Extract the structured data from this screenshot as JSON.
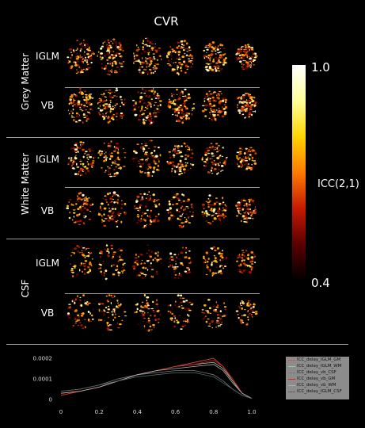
{
  "title": "CVR",
  "groups": [
    {
      "label": "Grey Matter",
      "rows": [
        "IGLM",
        "VB"
      ]
    },
    {
      "label": "White Matter",
      "rows": [
        "IGLM",
        "VB"
      ]
    },
    {
      "label": "CSF",
      "rows": [
        "IGLM",
        "VB"
      ]
    }
  ],
  "colorbar": {
    "max_label": "1.0",
    "min_label": "0.4",
    "label": "ICC(2,1)",
    "colors": [
      "#000000",
      "#5a0000",
      "#c41a00",
      "#ff7a00",
      "#ffd400",
      "#ffff9a",
      "#ffffff"
    ]
  },
  "chart_data": {
    "type": "line",
    "xlim": [
      0,
      1.0
    ],
    "ylim": [
      0,
      0.0002
    ],
    "x_ticks": [
      "0",
      "0.2",
      "0.4",
      "0.6",
      "0.8",
      "1.0"
    ],
    "y_ticks": [
      "0.0002",
      "0.0001",
      "0"
    ],
    "legend_position": "right",
    "x": [
      0,
      0.1,
      0.2,
      0.3,
      0.4,
      0.5,
      0.6,
      0.7,
      0.8,
      0.85,
      0.9,
      0.95,
      1.0
    ],
    "series": [
      {
        "name": "ICC_delay_IGLM_GM",
        "color": "#d9534f",
        "values": [
          2e-05,
          4e-05,
          6e-05,
          9e-05,
          0.00012,
          0.00014,
          0.00016,
          0.00018,
          0.0002,
          0.00016,
          9e-05,
          3e-05,
          5e-06
        ]
      },
      {
        "name": "ICC_delay_IGLM_WM",
        "color": "#a6c4a0",
        "values": [
          3e-05,
          4e-05,
          6e-05,
          9e-05,
          0.00012,
          0.00014,
          0.00016,
          0.00017,
          0.00018,
          0.00015,
          9e-05,
          3e-05,
          5e-06
        ]
      },
      {
        "name": "ICC_delay_vb_CSF",
        "color": "#7a7a7a",
        "values": [
          4e-05,
          5e-05,
          7e-05,
          0.0001,
          0.00012,
          0.00013,
          0.00014,
          0.00014,
          0.00012,
          9e-05,
          5e-05,
          2e-05,
          5e-06
        ]
      },
      {
        "name": "ICC_delay_vb_GM",
        "color": "#e02020",
        "values": [
          2e-05,
          4e-05,
          6e-05,
          9e-05,
          0.00012,
          0.00014,
          0.00016,
          0.00017,
          0.00019,
          0.00016,
          0.0001,
          3e-05,
          5e-06
        ]
      },
      {
        "name": "ICC_delay_vb_WM",
        "color": "#b0b0b0",
        "values": [
          3e-05,
          4e-05,
          6e-05,
          9e-05,
          0.00012,
          0.00014,
          0.00015,
          0.00016,
          0.00017,
          0.00014,
          8e-05,
          3e-05,
          5e-06
        ]
      },
      {
        "name": "ICC_delay_IGLM_CSF",
        "color": "#4a6a6a",
        "values": [
          4e-05,
          5e-05,
          7e-05,
          9e-05,
          0.00011,
          0.00012,
          0.00013,
          0.00013,
          0.00011,
          8e-05,
          5e-05,
          2e-05,
          5e-06
        ]
      }
    ]
  }
}
